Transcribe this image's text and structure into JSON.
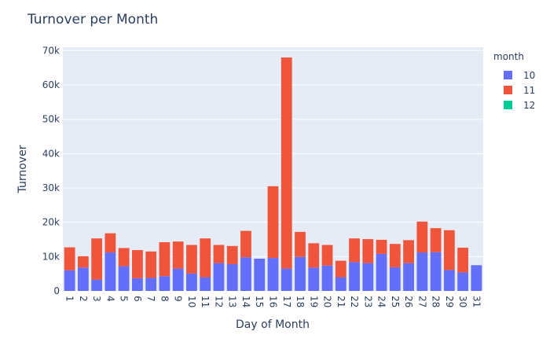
{
  "chart_data": {
    "type": "bar",
    "barmode": "stack",
    "title": "Turnover per Month",
    "xlabel": "Day of Month",
    "ylabel": "Turnover",
    "ylim": [
      0,
      71000
    ],
    "yticks": [
      0,
      10000,
      20000,
      30000,
      40000,
      50000,
      60000,
      70000
    ],
    "ytick_labels": [
      "0",
      "10k",
      "20k",
      "30k",
      "40k",
      "50k",
      "60k",
      "70k"
    ],
    "grid": true,
    "legend_title": "month",
    "legend_position": "top-right",
    "categories": [
      "1",
      "2",
      "3",
      "4",
      "5",
      "6",
      "7",
      "8",
      "9",
      "10",
      "11",
      "12",
      "13",
      "14",
      "15",
      "16",
      "17",
      "18",
      "19",
      "20",
      "21",
      "22",
      "23",
      "24",
      "25",
      "26",
      "27",
      "28",
      "29",
      "30",
      "31"
    ],
    "series": [
      {
        "name": "10",
        "color": "#636efa",
        "values": [
          6000,
          6800,
          3300,
          11200,
          7200,
          3700,
          3800,
          4300,
          6500,
          5100,
          4000,
          8100,
          7800,
          9800,
          9400,
          9600,
          6500,
          9900,
          6800,
          7400,
          4000,
          8400,
          8100,
          10800,
          6900,
          8100,
          11200,
          11300,
          6100,
          5400,
          7500
        ]
      },
      {
        "name": "11",
        "color": "#ef553b",
        "values": [
          6700,
          3300,
          12000,
          5600,
          5300,
          8200,
          7700,
          9900,
          7900,
          8300,
          11300,
          5300,
          5300,
          7700,
          0,
          20900,
          61500,
          7300,
          7100,
          6000,
          4800,
          6900,
          7000,
          4100,
          6800,
          6700,
          9000,
          7000,
          11600,
          7200,
          0
        ]
      },
      {
        "name": "12",
        "color": "#00cc96",
        "values": [
          0,
          0,
          0,
          0,
          0,
          0,
          0,
          0,
          0,
          0,
          0,
          0,
          0,
          0,
          0,
          0,
          0,
          0,
          0,
          0,
          0,
          0,
          0,
          0,
          0,
          0,
          0,
          0,
          0,
          0,
          0
        ]
      }
    ]
  }
}
